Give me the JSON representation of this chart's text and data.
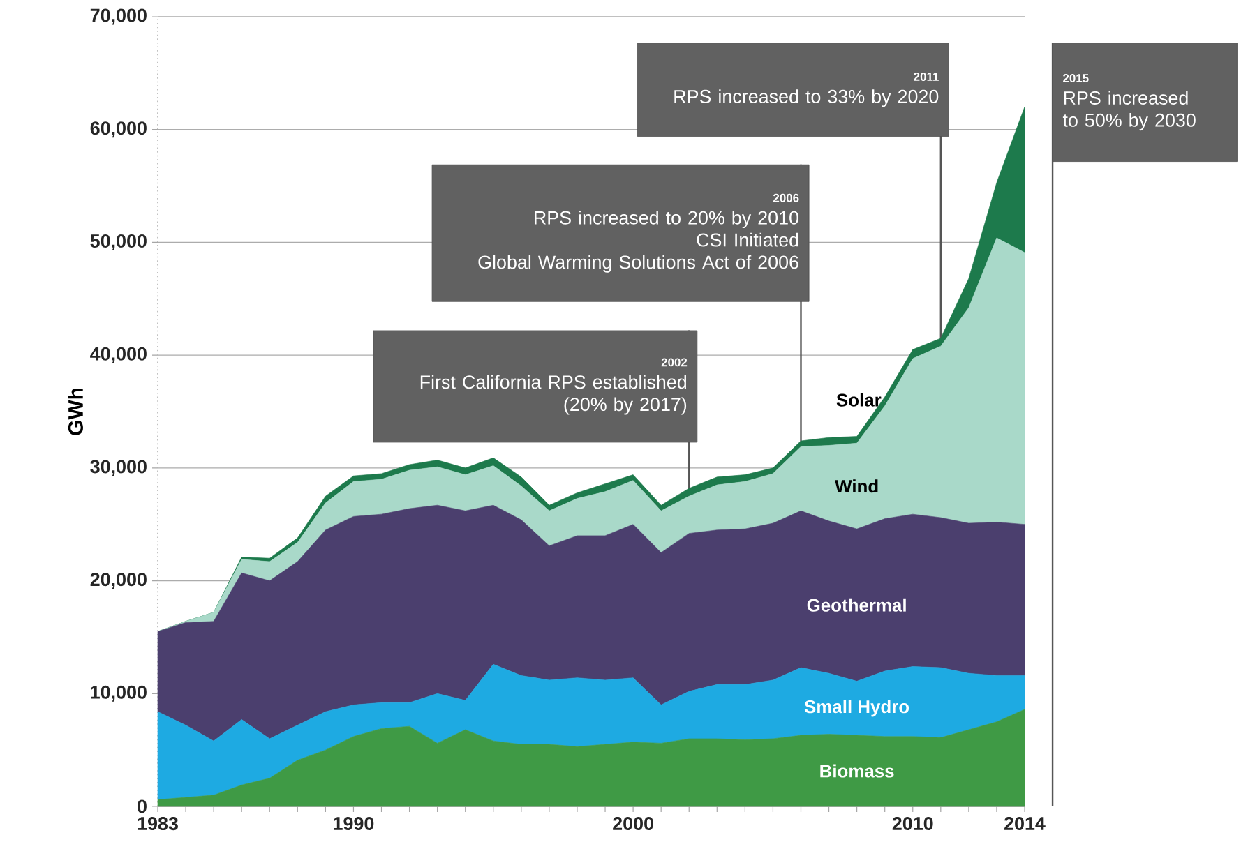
{
  "chart_data": {
    "type": "area",
    "stacked": true,
    "ylabel": "GWh",
    "x": [
      1983,
      1984,
      1985,
      1986,
      1987,
      1988,
      1989,
      1990,
      1991,
      1992,
      1993,
      1994,
      1995,
      1996,
      1997,
      1998,
      1999,
      2000,
      2001,
      2002,
      2003,
      2004,
      2005,
      2006,
      2007,
      2008,
      2009,
      2010,
      2011,
      2012,
      2013,
      2014
    ],
    "series": [
      {
        "name": "Biomass",
        "color": "#3f9a45",
        "values": [
          600,
          800,
          1000,
          1900,
          2500,
          4100,
          5000,
          6200,
          6900,
          7100,
          5600,
          6800,
          5800,
          5500,
          5500,
          5300,
          5500,
          5700,
          5600,
          6000,
          6000,
          5900,
          6000,
          6300,
          6400,
          6300,
          6200,
          6200,
          6100,
          6800,
          7500,
          8600
        ]
      },
      {
        "name": "Small Hydro",
        "color": "#1eaae2",
        "values": [
          7800,
          6400,
          4800,
          5800,
          3500,
          3100,
          3400,
          2800,
          2300,
          2100,
          4400,
          2600,
          6800,
          6100,
          5700,
          6100,
          5700,
          5700,
          3400,
          4200,
          4800,
          4900,
          5200,
          6000,
          5400,
          4800,
          5800,
          6200,
          6200,
          5000,
          4100,
          3000
        ]
      },
      {
        "name": "Geothermal",
        "color": "#4b3f6e",
        "values": [
          7100,
          9100,
          10600,
          13000,
          14000,
          14500,
          16100,
          16700,
          16700,
          17200,
          16700,
          16800,
          14100,
          13800,
          11900,
          12600,
          12800,
          13600,
          13500,
          14000,
          13700,
          13800,
          13900,
          13900,
          13500,
          13500,
          13500,
          13500,
          13300,
          13300,
          13600,
          13400
        ]
      },
      {
        "name": "Wind",
        "color": "#a9d9c9",
        "values": [
          0,
          100,
          800,
          1200,
          1700,
          1700,
          2400,
          3100,
          3100,
          3400,
          3400,
          3200,
          3500,
          3000,
          3100,
          3300,
          3900,
          3900,
          3700,
          3300,
          4000,
          4200,
          4400,
          5700,
          6700,
          7600,
          10000,
          13800,
          15200,
          19100,
          25200,
          24100
        ]
      },
      {
        "name": "Solar",
        "color": "#1d7a4c",
        "values": [
          0,
          0,
          0,
          200,
          300,
          400,
          600,
          500,
          500,
          500,
          600,
          600,
          700,
          800,
          500,
          500,
          700,
          500,
          500,
          700,
          700,
          600,
          500,
          500,
          700,
          600,
          800,
          800,
          700,
          2600,
          4900,
          12900
        ]
      }
    ],
    "xlim": [
      1983,
      2014
    ],
    "xticks": [
      1983,
      {
        "value": 1984,
        "label": null
      },
      {
        "value": 1985,
        "label": null
      },
      {
        "value": 1986,
        "label": null
      },
      {
        "value": 1987,
        "label": null
      },
      {
        "value": 1988,
        "label": null
      },
      {
        "value": 1989,
        "label": null
      },
      1990,
      {
        "value": 1991,
        "label": null
      },
      {
        "value": 1992,
        "label": null
      },
      {
        "value": 1993,
        "label": null
      },
      {
        "value": 1994,
        "label": null
      },
      {
        "value": 1995,
        "label": null
      },
      {
        "value": 1996,
        "label": null
      },
      {
        "value": 1997,
        "label": null
      },
      {
        "value": 1998,
        "label": null
      },
      {
        "value": 1999,
        "label": null
      },
      2000,
      {
        "value": 2001,
        "label": null
      },
      {
        "value": 2002,
        "label": null
      },
      {
        "value": 2003,
        "label": null
      },
      {
        "value": 2004,
        "label": null
      },
      {
        "value": 2005,
        "label": null
      },
      {
        "value": 2006,
        "label": null
      },
      {
        "value": 2007,
        "label": null
      },
      {
        "value": 2008,
        "label": null
      },
      {
        "value": 2009,
        "label": null
      },
      2010,
      {
        "value": 2011,
        "label": null
      },
      {
        "value": 2012,
        "label": null
      },
      {
        "value": 2013,
        "label": null
      },
      2014
    ],
    "ylim": [
      0,
      70000
    ],
    "yticks": [
      0,
      {
        "value": 10000,
        "label": "10,000"
      },
      {
        "value": 20000,
        "label": "20,000"
      },
      {
        "value": 30000,
        "label": "30,000"
      },
      {
        "value": 40000,
        "label": "40,000"
      },
      {
        "value": 50000,
        "label": "50,000"
      },
      {
        "value": 60000,
        "label": "60,000"
      },
      {
        "value": 70000,
        "label": "70,000"
      }
    ],
    "grid": "y",
    "ref_lines": [
      {
        "axis": "x",
        "value": 2002,
        "label": "2002",
        "color": "#555555"
      },
      {
        "axis": "x",
        "value": 2006,
        "label": "2006",
        "color": "#555555"
      },
      {
        "axis": "x",
        "value": 2011,
        "label": "2011",
        "color": "#555555"
      },
      {
        "axis": "x",
        "value": 2015,
        "label": "2015",
        "color": "#555555"
      }
    ],
    "annotations": [
      {
        "text": "First California RPS established",
        "x": 2002
      },
      {
        "text": "(20% by 2017)",
        "x": 2002
      },
      {
        "text": "RPS increased to 20% by 2010",
        "x": 2006
      },
      {
        "text": "CSI Initiated",
        "x": 2006
      },
      {
        "text": "Global Warming Solutions Act of 2006",
        "x": 2006
      },
      {
        "text": "RPS increased to 33% by 2020",
        "x": 2011
      },
      {
        "text": "RPS increased",
        "x": 2015
      },
      {
        "text": "to 50% by 2030",
        "x": 2015
      }
    ]
  }
}
